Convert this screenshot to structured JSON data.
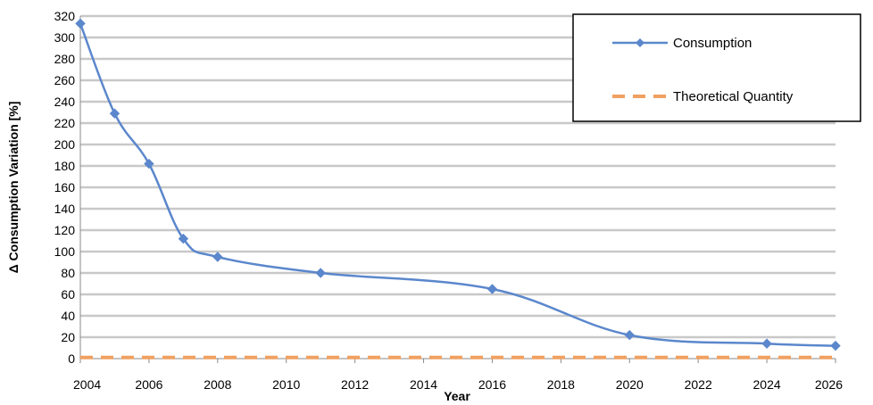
{
  "chart_data": {
    "type": "line",
    "xlabel": "Year",
    "ylabel": "Δ Consumption Variation [%]",
    "xlim": [
      2004,
      2026
    ],
    "ylim": [
      0,
      320
    ],
    "x_ticks": [
      2004,
      2006,
      2008,
      2010,
      2012,
      2014,
      2016,
      2018,
      2020,
      2022,
      2024,
      2026
    ],
    "y_ticks": [
      0,
      20,
      40,
      60,
      80,
      100,
      120,
      140,
      160,
      180,
      200,
      220,
      240,
      260,
      280,
      300,
      320
    ],
    "grid": "horizontal",
    "legend_position": "top-right",
    "series": [
      {
        "name": "Consumption",
        "color": "#5b87cc",
        "marker": "diamond",
        "style": "solid-smooth",
        "x": [
          2004,
          2005,
          2006,
          2007,
          2008,
          2011,
          2016,
          2020,
          2024,
          2026
        ],
        "y": [
          313,
          229,
          182,
          112,
          95,
          80,
          65,
          22,
          14,
          12
        ]
      },
      {
        "name": "Theoretical Quantity",
        "color": "#f0a060",
        "marker": "none",
        "style": "dashed",
        "x": [
          2004,
          2026
        ],
        "y": [
          1,
          1
        ]
      }
    ]
  }
}
